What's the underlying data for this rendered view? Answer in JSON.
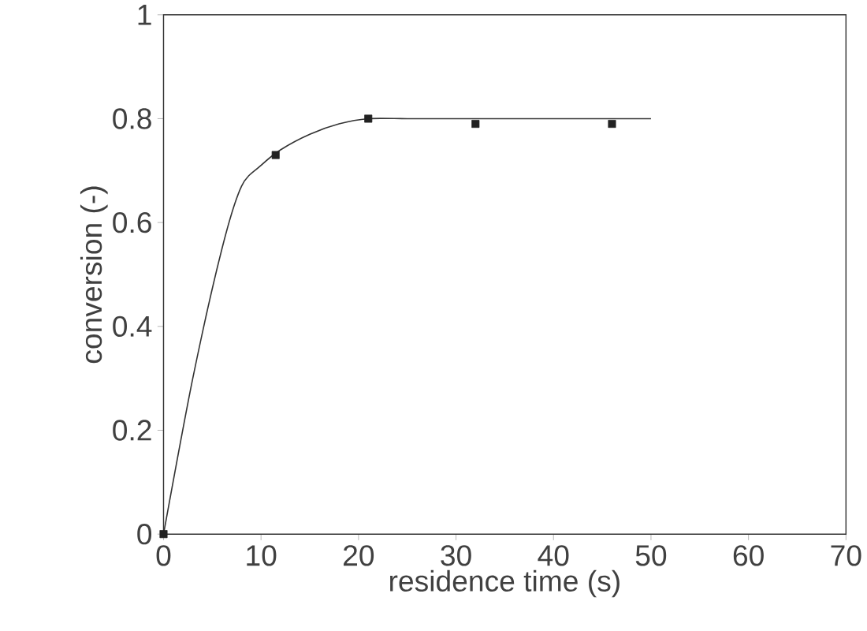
{
  "chart_data": {
    "type": "scatter",
    "xlabel": "residence time   (s)",
    "ylabel": "conversion  (-)",
    "xlim": [
      0,
      70
    ],
    "ylim": [
      0,
      1
    ],
    "xticks": [
      0,
      10,
      20,
      30,
      40,
      50,
      60,
      70
    ],
    "yticks": [
      0,
      0.2,
      0.4,
      0.6,
      0.8,
      1
    ],
    "grid": false,
    "series": [
      {
        "type": "line",
        "color": "#333333",
        "marker": "none",
        "line_style": "solid",
        "x": [
          0,
          3,
          6,
          8,
          10,
          12,
          15,
          18,
          21,
          25,
          30,
          40,
          50
        ],
        "values": [
          0,
          0.3,
          0.55,
          0.67,
          0.71,
          0.74,
          0.77,
          0.79,
          0.8,
          0.8,
          0.8,
          0.8,
          0.8
        ]
      },
      {
        "color": "#222222",
        "marker": "square",
        "x": [
          0,
          11.5,
          21,
          32,
          46
        ],
        "values": [
          0,
          0.73,
          0.8,
          0.79,
          0.79
        ]
      }
    ]
  }
}
